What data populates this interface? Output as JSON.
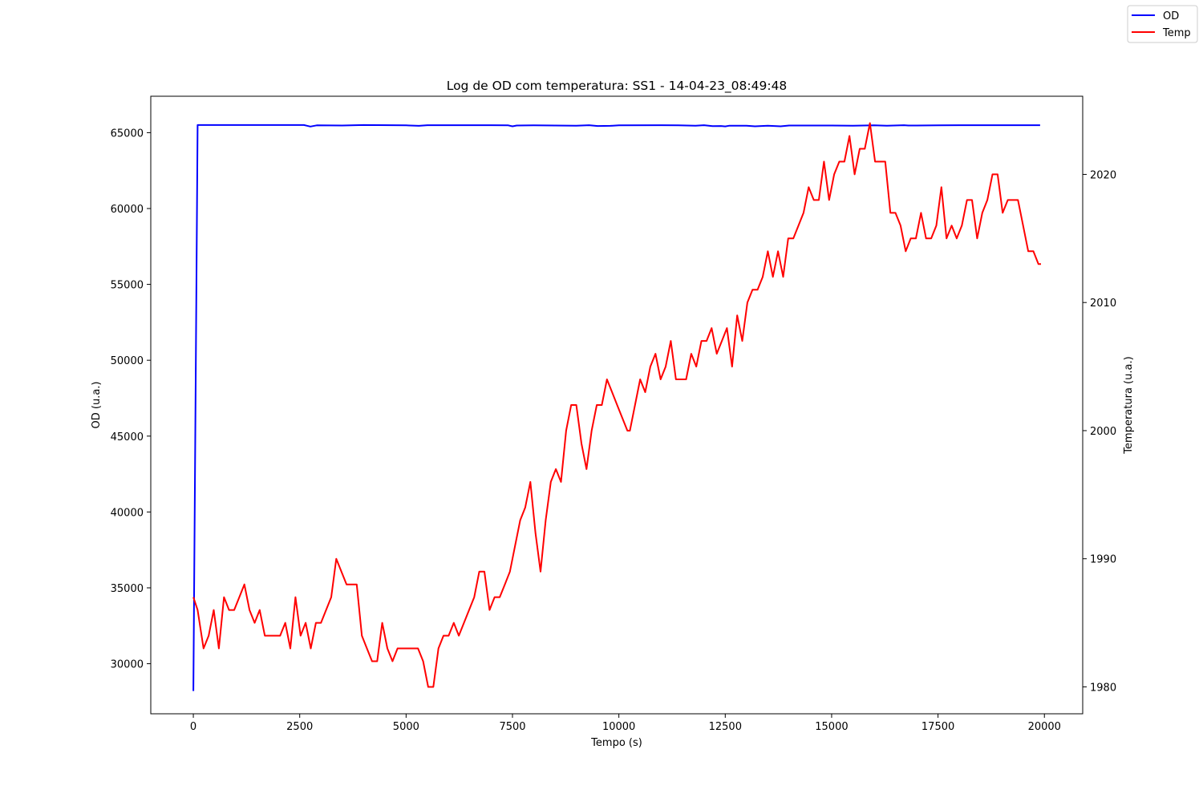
{
  "chart_data": {
    "type": "line",
    "title": "Log de OD com temperatura: SS1 - 14-04-23_08:49:48",
    "xlabel": "Tempo (s)",
    "ylabel_left": "OD (u.a.)",
    "ylabel_right": "Temperatura (u.a.)",
    "xlim": [
      -1000,
      20900
    ],
    "ylim_left": [
      26700,
      67400
    ],
    "ylim_right": [
      1977.9,
      2026.1
    ],
    "xticks": [
      0,
      2500,
      5000,
      7500,
      10000,
      12500,
      15000,
      17500,
      20000
    ],
    "xtick_labels": [
      "0",
      "2500",
      "5000",
      "7500",
      "10000",
      "12500",
      "15000",
      "17500",
      "20000"
    ],
    "yticks_left": [
      30000,
      35000,
      40000,
      45000,
      50000,
      55000,
      60000,
      65000
    ],
    "ytick_labels_left": [
      "30000",
      "35000",
      "40000",
      "45000",
      "50000",
      "55000",
      "60000",
      "65000"
    ],
    "yticks_right": [
      1980,
      1990,
      2000,
      2010,
      2020
    ],
    "ytick_labels_right": [
      "1980",
      "1990",
      "2000",
      "2010",
      "2020"
    ],
    "grid": false,
    "legend": {
      "placement": "top-right (outside plot)",
      "entries": [
        "OD",
        "Temp"
      ]
    },
    "series": [
      {
        "name": "OD",
        "axis": "left",
        "color": "#0000ff",
        "x": [
          0,
          100,
          2600,
          2750,
          2900,
          3500,
          4000,
          5000,
          5300,
          5500,
          6000,
          7000,
          7400,
          7500,
          7600,
          8000,
          8500,
          9000,
          9300,
          9500,
          9800,
          10000,
          11000,
          11400,
          11800,
          12000,
          12200,
          12400,
          12500,
          12600,
          13000,
          13200,
          13500,
          13800,
          14000,
          14500,
          15000,
          15500,
          16000,
          16300,
          16700,
          16800,
          17500,
          18000,
          19000,
          19900
        ],
        "y": [
          28200,
          65500,
          65500,
          65400,
          65480,
          65470,
          65500,
          65480,
          65450,
          65490,
          65490,
          65490,
          65480,
          65420,
          65470,
          65480,
          65470,
          65460,
          65490,
          65440,
          65450,
          65480,
          65490,
          65480,
          65460,
          65490,
          65430,
          65440,
          65410,
          65460,
          65460,
          65420,
          65460,
          65420,
          65470,
          65470,
          65470,
          65460,
          65480,
          65460,
          65490,
          65470,
          65480,
          65490,
          65490,
          65490
        ]
      },
      {
        "name": "Temp",
        "axis": "right",
        "color": "#ff0000",
        "x": [
          0,
          100,
          240,
          360,
          480,
          600,
          720,
          840,
          960,
          1080,
          1200,
          1320,
          1440,
          1560,
          1680,
          1800,
          1920,
          2040,
          2160,
          2280,
          2400,
          2520,
          2640,
          2760,
          2880,
          3000,
          3120,
          3240,
          3360,
          3480,
          3600,
          3720,
          3840,
          3960,
          4080,
          4200,
          4320,
          4440,
          4560,
          4680,
          4800,
          4920,
          5040,
          5160,
          5280,
          5400,
          5520,
          5640,
          5760,
          5880,
          6000,
          6120,
          6240,
          6360,
          6480,
          6600,
          6720,
          6840,
          6960,
          7080,
          7200,
          7320,
          7440,
          7560,
          7680,
          7800,
          7920,
          8040,
          8160,
          8280,
          8400,
          8520,
          8640,
          8760,
          8880,
          9000,
          9120,
          9240,
          9360,
          9480,
          9600,
          9720,
          9840,
          9960,
          10080,
          10200,
          10260,
          10380,
          10500,
          10620,
          10740,
          10860,
          10980,
          11100,
          11220,
          11340,
          11460,
          11580,
          11700,
          11820,
          11940,
          12060,
          12180,
          12300,
          12420,
          12540,
          12660,
          12780,
          12900,
          13020,
          13140,
          13260,
          13380,
          13500,
          13620,
          13740,
          13860,
          13980,
          14100,
          14220,
          14340,
          14460,
          14580,
          14700,
          14820,
          14940,
          15060,
          15180,
          15300,
          15420,
          15540,
          15660,
          15780,
          15900,
          16020,
          16140,
          16260,
          16380,
          16500,
          16620,
          16740,
          16860,
          16980,
          17100,
          17220,
          17340,
          17460,
          17580,
          17700,
          17820,
          17940,
          18060,
          18180,
          18300,
          18420,
          18540,
          18660,
          18780,
          18900,
          19020,
          19140,
          19260,
          19380,
          19500,
          19620,
          19740,
          19860,
          19920
        ],
        "y": [
          1987,
          1986,
          1983,
          1984,
          1986,
          1983,
          1987,
          1986,
          1986,
          1987,
          1988,
          1986,
          1985,
          1986,
          1984,
          1984,
          1984,
          1984,
          1985,
          1983,
          1987,
          1984,
          1985,
          1983,
          1985,
          1985,
          1986,
          1987,
          1990,
          1989,
          1988,
          1988,
          1988,
          1984,
          1983,
          1982,
          1982,
          1985,
          1983,
          1982,
          1983,
          1983,
          1983,
          1983,
          1983,
          1982,
          1980,
          1980,
          1983,
          1984,
          1984,
          1985,
          1984,
          1985,
          1986,
          1987,
          1989,
          1989,
          1986,
          1987,
          1987,
          1988,
          1989,
          1991,
          1993,
          1994,
          1996,
          1992,
          1989,
          1993,
          1996,
          1997,
          1996,
          2000,
          2002,
          2002,
          1999,
          1997,
          2000,
          2002,
          2002,
          2004,
          2003,
          2002,
          2001,
          2000,
          2000,
          2002,
          2004,
          2003,
          2005,
          2006,
          2004,
          2005,
          2007,
          2004,
          2004,
          2004,
          2006,
          2005,
          2007,
          2007,
          2008,
          2006,
          2007,
          2008,
          2005,
          2009,
          2007,
          2010,
          2011,
          2011,
          2012,
          2014,
          2012,
          2014,
          2012,
          2015,
          2015,
          2016,
          2017,
          2019,
          2018,
          2018,
          2021,
          2018,
          2020,
          2021,
          2021,
          2023,
          2020,
          2022,
          2022,
          2024,
          2021,
          2021,
          2021,
          2017,
          2017,
          2016,
          2014,
          2015,
          2015,
          2017,
          2015,
          2015,
          2016,
          2019,
          2015,
          2016,
          2015,
          2016,
          2018,
          2018,
          2015,
          2017,
          2018,
          2020,
          2020,
          2017,
          2018,
          2018,
          2018,
          2016,
          2014,
          2014,
          2013,
          2013
        ]
      }
    ]
  }
}
